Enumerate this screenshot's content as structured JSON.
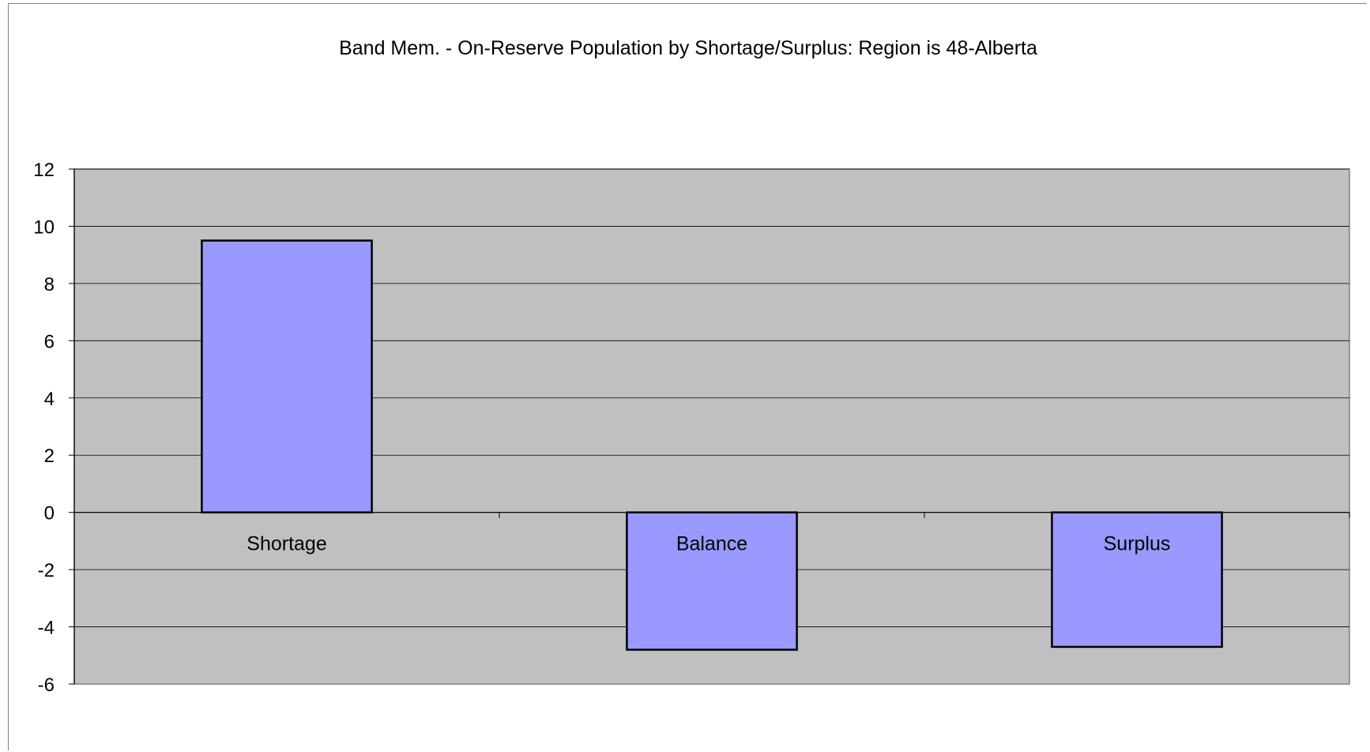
{
  "chart_data": {
    "type": "bar",
    "title": "Band Mem. - On-Reserve Population by Shortage/Surplus: Region is 48-Alberta",
    "xlabel": "",
    "ylabel": "",
    "categories": [
      "Shortage",
      "Balance",
      "Surplus"
    ],
    "series": [
      {
        "values": [
          9.5,
          -4.8,
          -4.7
        ]
      }
    ],
    "ylim": [
      -6,
      12
    ],
    "yticks": [
      -6,
      -4,
      -2,
      0,
      2,
      4,
      6,
      8,
      10,
      12
    ],
    "ytick_labels": [
      "-6",
      "-4",
      "-2",
      "0",
      "2",
      "4",
      "6",
      "8",
      "10",
      "12"
    ],
    "grid": true,
    "legend": "none",
    "colors": {
      "bar_fill": "#9999ff",
      "bar_stroke": "#000000",
      "plot_background": "#c0c0c0",
      "gridline": "#000000"
    }
  }
}
